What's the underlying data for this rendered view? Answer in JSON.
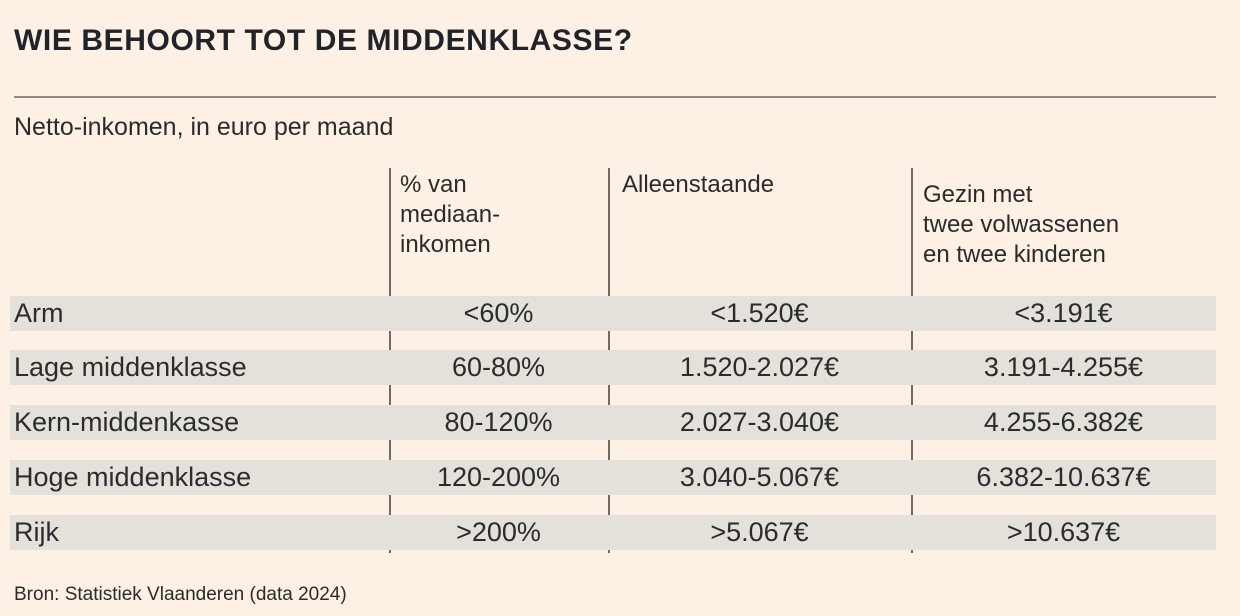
{
  "title": "WIE BEHOORT TOT DE MIDDENKLASSE?",
  "subtitle": "Netto-inkomen, in euro per maand",
  "source": "Bron: Statistiek Vlaanderen (data 2024)",
  "colors": {
    "background": "#fcf1e4",
    "row_band": "#e4e1db",
    "title_text": "#20242a",
    "body_text": "#2b2b2b",
    "column_divider": "#6e6a64",
    "title_rule": "#8f8c85"
  },
  "table": {
    "headers": [
      "% van\nmediaan-\ninkomen",
      "Alleenstaande",
      "Gezin met\ntwee volwassenen\nen twee kinderen"
    ],
    "rows": [
      {
        "label": "Arm",
        "pct": "<60%",
        "single": "<1.520€",
        "family": "<3.191€"
      },
      {
        "label": "Lage middenklasse",
        "pct": "60-80%",
        "single": "1.520-2.027€",
        "family": "3.191-4.255€"
      },
      {
        "label": "Kern-middenkasse",
        "pct": "80-120%",
        "single": "2.027-3.040€",
        "family": "4.255-6.382€"
      },
      {
        "label": "Hoge middenklasse",
        "pct": "120-200%",
        "single": "3.040-5.067€",
        "family": "6.382-10.637€"
      },
      {
        "label": "Rijk",
        "pct": ">200%",
        "single": ">5.067€",
        "family": ">10.637€"
      }
    ]
  },
  "chart_data": {
    "type": "table",
    "title": "WIE BEHOORT TOT DE MIDDENKLASSE?",
    "subtitle": "Netto-inkomen, in euro per maand",
    "columns": [
      "",
      "% van mediaan-inkomen",
      "Alleenstaande",
      "Gezin met twee volwassenen en twee kinderen"
    ],
    "rows": [
      [
        "Arm",
        "<60%",
        "<1.520€",
        "<3.191€"
      ],
      [
        "Lage middenklasse",
        "60-80%",
        "1.520-2.027€",
        "3.191-4.255€"
      ],
      [
        "Kern-middenkasse",
        "80-120%",
        "2.027-3.040€",
        "4.255-6.382€"
      ],
      [
        "Hoge middenklasse",
        "120-200%",
        "3.040-5.067€",
        "6.382-10.637€"
      ],
      [
        "Rijk",
        ">200%",
        ">5.067€",
        ">10.637€"
      ]
    ],
    "source": "Bron: Statistiek Vlaanderen (data 2024)"
  }
}
